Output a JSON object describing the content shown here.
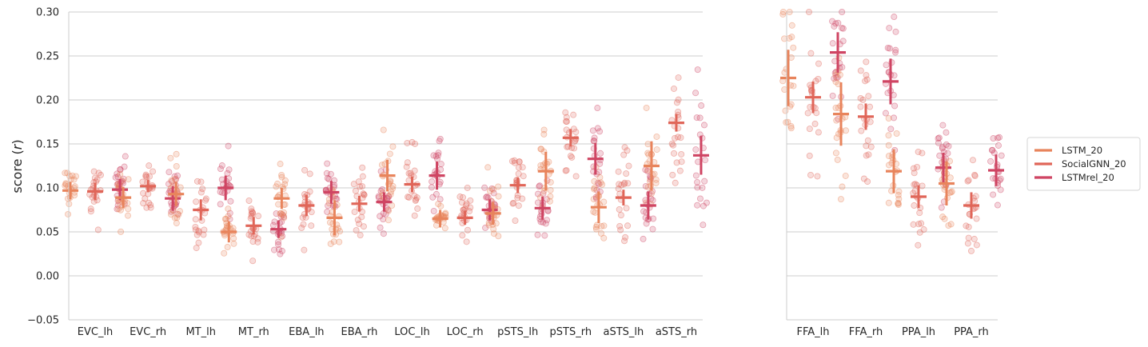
{
  "chart_data": {
    "type": "scatter",
    "ylabel_prefix": "score (",
    "ylabel_var": "r",
    "ylabel_suffix": ")",
    "ylim": [
      -0.05,
      0.3
    ],
    "yticks": [
      -0.05,
      0.0,
      0.05,
      0.1,
      0.15,
      0.2,
      0.25,
      0.3
    ],
    "ytick_labels": [
      "−0.05",
      "0.00",
      "0.05",
      "0.10",
      "0.15",
      "0.20",
      "0.25",
      "0.30"
    ],
    "grid": "horizontal",
    "legend_position": "right",
    "series": [
      {
        "name": "LSTM_20",
        "color": "#e8845c"
      },
      {
        "name": "SocialGNN_20",
        "color": "#e06659"
      },
      {
        "name": "LSTMrel_20",
        "color": "#cf4563"
      }
    ],
    "panels": [
      {
        "categories": [
          "EVC_lh",
          "EVC_rh",
          "MT_lh",
          "MT_rh",
          "EBA_lh",
          "EBA_rh",
          "LOC_lh",
          "LOC_rh",
          "pSTS_lh",
          "pSTS_rh",
          "aSTS_lh",
          "aSTS_rh"
        ],
        "means": [
          [
            0.097,
            0.089,
            0.093,
            0.05,
            0.088,
            0.066,
            0.114,
            0.065,
            0.071,
            0.119,
            0.078,
            0.125
          ],
          [
            0.096,
            0.102,
            0.075,
            0.057,
            0.08,
            0.082,
            0.104,
            0.066,
            0.103,
            0.157,
            0.089,
            0.174
          ],
          [
            0.098,
            0.088,
            0.1,
            0.053,
            0.095,
            0.084,
            0.114,
            0.075,
            0.077,
            0.133,
            0.08,
            0.137
          ]
        ],
        "err": [
          [
            0.01,
            0.012,
            0.014,
            0.012,
            0.012,
            0.02,
            0.018,
            0.01,
            0.013,
            0.022,
            0.018,
            0.028
          ],
          [
            0.01,
            0.007,
            0.012,
            0.01,
            0.012,
            0.009,
            0.009,
            0.008,
            0.009,
            0.01,
            0.009,
            0.01
          ],
          [
            0.012,
            0.014,
            0.014,
            0.01,
            0.013,
            0.011,
            0.016,
            0.012,
            0.013,
            0.018,
            0.016,
            0.022
          ]
        ],
        "spread": [
          0.03,
          0.03,
          0.035,
          0.025,
          0.035,
          0.035,
          0.04,
          0.025,
          0.035,
          0.045,
          0.045,
          0.06
        ]
      },
      {
        "categories": [
          "FFA_lh",
          "FFA_rh",
          "PPA_lh",
          "PPA_rh"
        ],
        "means": [
          [
            0.225,
            0.184,
            0.119,
            0.105
          ],
          [
            0.203,
            0.181,
            0.09,
            0.08
          ],
          [
            0.254,
            0.221,
            0.123,
            0.12
          ]
        ],
        "err": [
          [
            0.032,
            0.036,
            0.025,
            0.025
          ],
          [
            0.018,
            0.015,
            0.013,
            0.015
          ],
          [
            0.023,
            0.026,
            0.017,
            0.018
          ]
        ],
        "spread": [
          0.065,
          0.075,
          0.05,
          0.05
        ]
      }
    ]
  }
}
